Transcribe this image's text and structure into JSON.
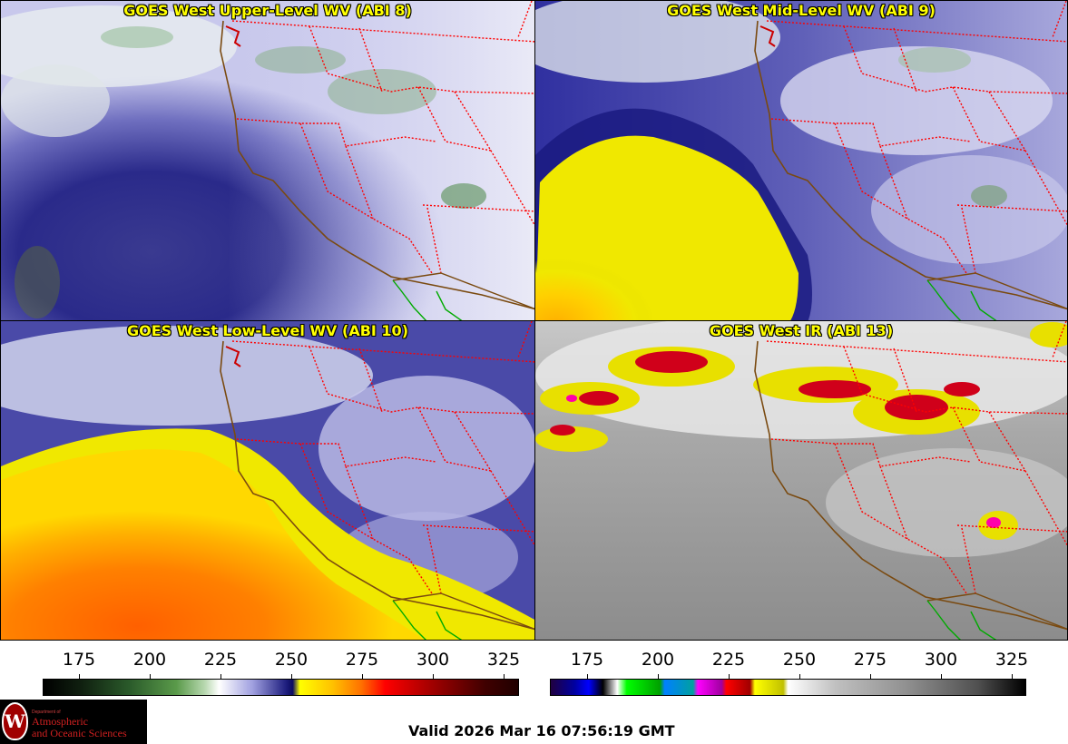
{
  "panels": [
    {
      "title": "GOES West Upper-Level WV (ABI 8)",
      "product": "upper-level-wv"
    },
    {
      "title": "GOES West Mid-Level WV (ABI 9)",
      "product": "mid-level-wv"
    },
    {
      "title": "GOES West Low-Level WV (ABI 10)",
      "product": "low-level-wv"
    },
    {
      "title": "GOES West IR (ABI 13)",
      "product": "ir"
    }
  ],
  "scales": {
    "wv_ticks": [
      "175",
      "200",
      "225",
      "250",
      "275",
      "300",
      "325"
    ],
    "ir_ticks": [
      "175",
      "200",
      "225",
      "250",
      "275",
      "300",
      "325"
    ]
  },
  "colors": {
    "title_text": "#ffff00",
    "border_state": "#ff0000",
    "coastline": "#7a4a10",
    "mexico_border": "#00aa00"
  },
  "logo": {
    "dept": "Department of",
    "line1": "Atmospheric",
    "line2": "and Oceanic Sciences",
    "seal_letter": "W"
  },
  "footer": {
    "valid": "Valid 2026 Mar 16 07:56:19 GMT"
  }
}
